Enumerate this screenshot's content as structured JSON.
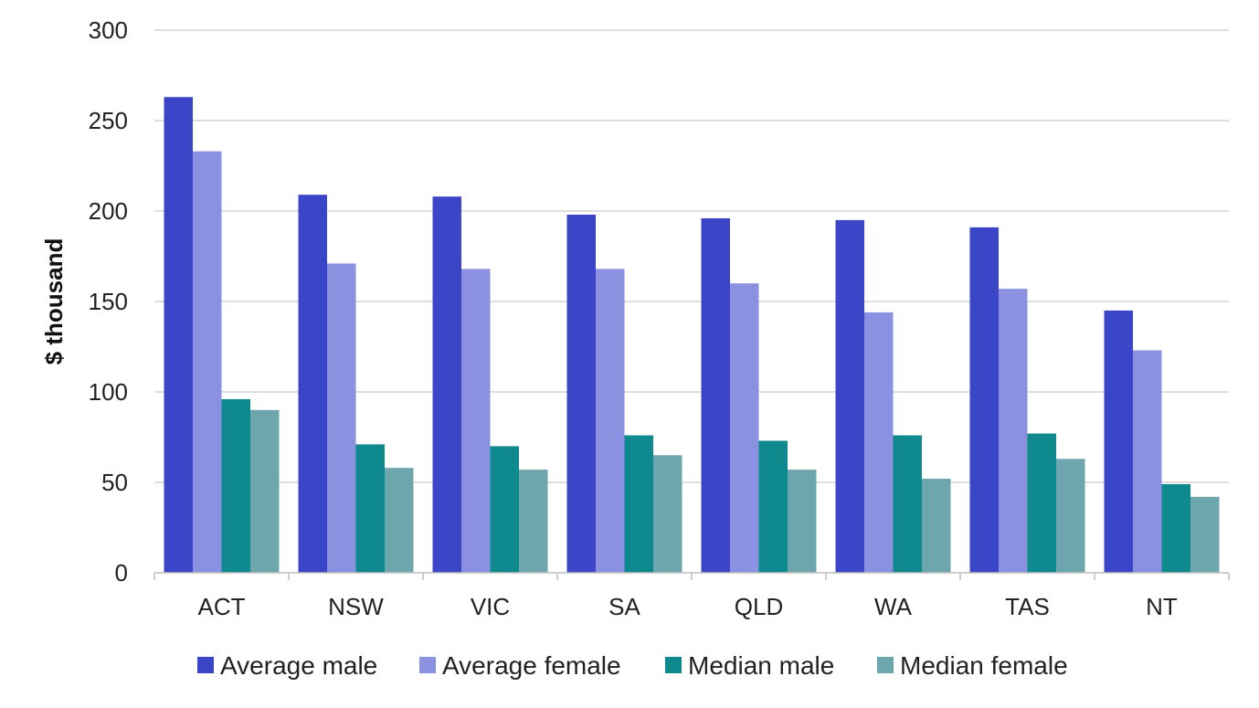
{
  "chart_data": {
    "type": "bar",
    "title": "",
    "xlabel": "",
    "ylabel": "$ thousand",
    "ylim": [
      0,
      300
    ],
    "yticks": [
      0,
      50,
      100,
      150,
      200,
      250,
      300
    ],
    "grid": true,
    "legend_position": "bottom",
    "categories": [
      "ACT",
      "NSW",
      "VIC",
      "SA",
      "QLD",
      "WA",
      "TAS",
      "NT"
    ],
    "series": [
      {
        "name": "Average male",
        "color": "#3a45c8",
        "values": [
          263,
          209,
          208,
          198,
          196,
          195,
          191,
          145
        ]
      },
      {
        "name": "Average female",
        "color": "#8a91e0",
        "values": [
          233,
          171,
          168,
          168,
          160,
          144,
          157,
          123
        ]
      },
      {
        "name": "Median male",
        "color": "#0e8a8f",
        "values": [
          96,
          71,
          70,
          76,
          73,
          76,
          77,
          49
        ]
      },
      {
        "name": "Median female",
        "color": "#6ea6ae",
        "values": [
          90,
          58,
          57,
          65,
          57,
          52,
          63,
          42
        ]
      }
    ]
  }
}
